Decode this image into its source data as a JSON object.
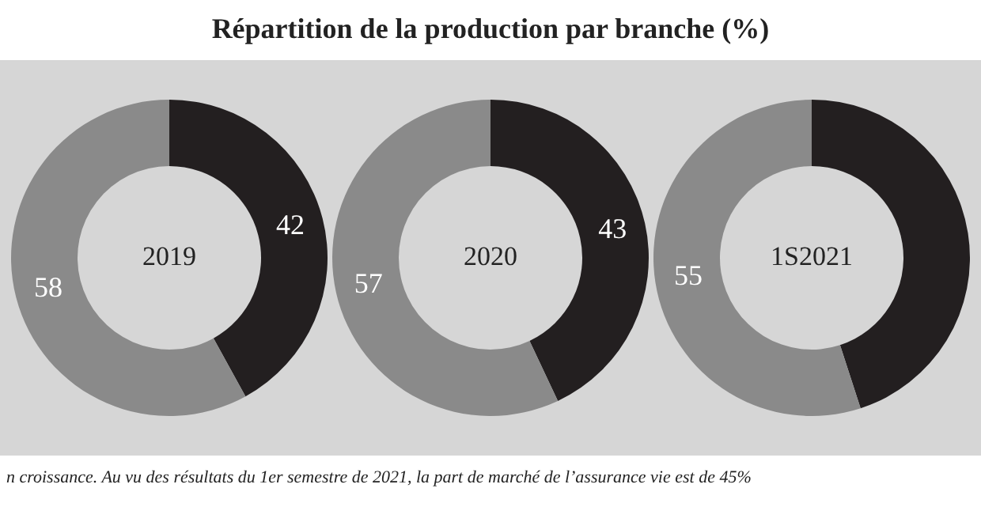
{
  "chart_data": [
    {
      "type": "other",
      "title": "Répartition de la production par branche (%)",
      "annotations": [
        "n croissance. Au vu des résultats du 1er semestre de 2021, la part de marché de l’assurance vie est de 45%"
      ]
    },
    {
      "type": "donut",
      "title": "2019",
      "categories": [
        null,
        null
      ],
      "values": [
        42,
        58
      ],
      "colors": [
        "#231f20",
        "#8a8a8a"
      ],
      "data_labels": true
    },
    {
      "type": "donut",
      "title": "2020",
      "categories": [
        null,
        null
      ],
      "values": [
        43,
        57
      ],
      "colors": [
        "#231f20",
        "#8a8a8a"
      ],
      "data_labels": true
    },
    {
      "type": "donut",
      "title": "1S2021",
      "categories": [
        null,
        null
      ],
      "values": [
        45,
        55
      ],
      "colors": [
        "#231f20",
        "#8a8a8a"
      ],
      "value_labels": [
        null,
        "55"
      ]
    }
  ]
}
